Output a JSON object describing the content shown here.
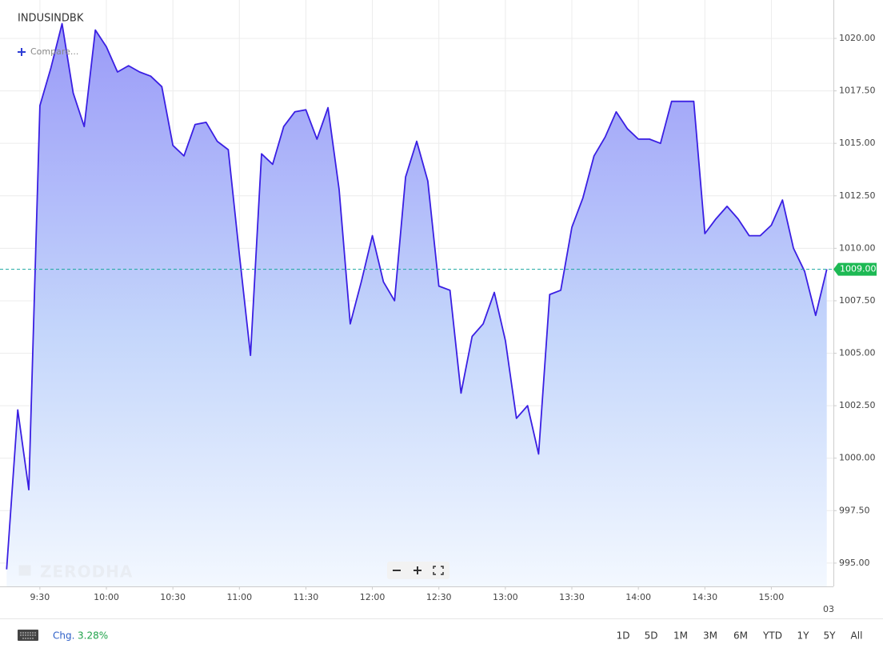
{
  "chart_data": {
    "type": "area",
    "title": "INDUSINDBK",
    "compare": "Compare...",
    "watermark": "ZERODHA",
    "color": "#3a1fe3",
    "x": [
      "9:15",
      "9:20",
      "9:25",
      "9:30",
      "9:35",
      "9:40",
      "9:45",
      "9:50",
      "9:55",
      "10:00",
      "10:05",
      "10:10",
      "10:15",
      "10:20",
      "10:25",
      "10:30",
      "10:35",
      "10:40",
      "10:45",
      "10:50",
      "10:55",
      "11:00",
      "11:05",
      "11:10",
      "11:15",
      "11:20",
      "11:25",
      "11:30",
      "11:35",
      "11:40",
      "11:45",
      "11:50",
      "11:55",
      "12:00",
      "12:05",
      "12:10",
      "12:15",
      "12:20",
      "12:25",
      "12:30",
      "12:35",
      "12:40",
      "12:45",
      "12:50",
      "12:55",
      "13:00",
      "13:05",
      "13:10",
      "13:15",
      "13:20",
      "13:25",
      "13:30",
      "13:35",
      "13:40",
      "13:45",
      "13:50",
      "13:55",
      "14:00",
      "14:05",
      "14:10",
      "14:15",
      "14:20",
      "14:25",
      "14:30",
      "14:35",
      "14:40",
      "14:45",
      "14:50",
      "14:55",
      "15:00",
      "15:05",
      "15:10",
      "15:15",
      "15:20",
      "15:25"
    ],
    "values": [
      994.7,
      1002.3,
      998.5,
      1016.8,
      1018.6,
      1020.7,
      1017.4,
      1015.8,
      1020.4,
      1019.6,
      1018.4,
      1018.7,
      1018.4,
      1018.2,
      1017.7,
      1014.9,
      1014.4,
      1015.9,
      1016.0,
      1015.1,
      1014.7,
      1009.7,
      1004.9,
      1014.5,
      1014.0,
      1015.8,
      1016.5,
      1016.6,
      1015.2,
      1016.7,
      1012.8,
      1006.4,
      1008.4,
      1010.6,
      1008.4,
      1007.5,
      1013.4,
      1015.1,
      1013.2,
      1008.2,
      1008.0,
      1003.1,
      1005.8,
      1006.4,
      1007.9,
      1005.6,
      1001.9,
      1002.5,
      1000.2,
      1007.8,
      1008.0,
      1011.0,
      1012.4,
      1014.4,
      1015.3,
      1016.5,
      1015.7,
      1015.2,
      1015.2,
      1015.0,
      1017.0,
      1017.0,
      1017.0,
      1010.7,
      1011.4,
      1012.0,
      1011.4,
      1010.6,
      1010.6,
      1011.1,
      1012.3,
      1010.0,
      1008.9,
      1006.8,
      1009.0
    ],
    "xlim": [
      "9:12",
      "15:28"
    ],
    "xticks": [
      "9:30",
      "10:00",
      "10:30",
      "11:00",
      "11:30",
      "12:00",
      "12:30",
      "13:00",
      "13:30",
      "14:00",
      "14:30",
      "15:00"
    ],
    "next_date": "03",
    "ylim": [
      993.89,
      1021.83
    ],
    "yticks": [
      {
        "value": 995,
        "label": "995.00"
      },
      {
        "value": 997.5,
        "label": "997.50"
      },
      {
        "value": 1000,
        "label": "1000.00"
      },
      {
        "value": 1002.5,
        "label": "1002.50"
      },
      {
        "value": 1005,
        "label": "1005.00"
      },
      {
        "value": 1007.5,
        "label": "1007.50"
      },
      {
        "value": 1010,
        "label": "1010.00"
      },
      {
        "value": 1012.5,
        "label": "1012.50"
      },
      {
        "value": 1015,
        "label": "1015.00"
      },
      {
        "value": 1017.5,
        "label": "1017.50"
      },
      {
        "value": 1020,
        "label": "1020.00"
      }
    ],
    "last_price": {
      "value": 1009,
      "label": "1009.00"
    },
    "grid": true,
    "footer": {
      "change_label": "Chg.",
      "change_value": "3.28%",
      "ranges": [
        "1D",
        "5D",
        "1M",
        "3M",
        "6M",
        "YTD",
        "1Y",
        "5Y",
        "All"
      ]
    }
  }
}
